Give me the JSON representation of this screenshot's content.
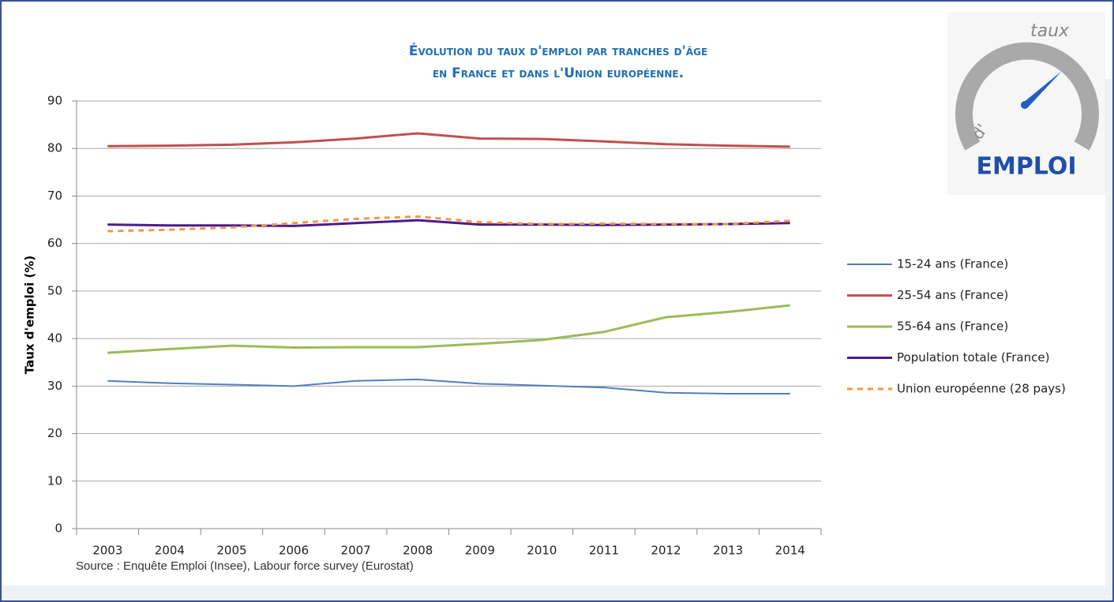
{
  "chart_data": {
    "type": "line",
    "title": [
      "Évolution du taux d'emploi par tranches d'âge",
      "en France et dans l'Union européenne."
    ],
    "y_label": "Taux d'emploi (%)",
    "source": "Source : Enquête Emploi (Insee), Labour force survey (Eurostat)",
    "logo": [
      "taux",
      "d'",
      "EMPLOI"
    ],
    "categories": [
      "2003",
      "2004",
      "2005",
      "2006",
      "2007",
      "2008",
      "2009",
      "2010",
      "2011",
      "2012",
      "2013",
      "2014"
    ],
    "series": [
      {
        "name": "15-24 ans (France)",
        "color": "#4f81bd",
        "width": 2,
        "values": [
          31.1,
          30.6,
          30.3,
          30.0,
          31.1,
          31.4,
          30.5,
          30.1,
          29.7,
          28.6,
          28.4,
          28.4
        ]
      },
      {
        "name": "25-54 ans (France)",
        "color": "#c0504d",
        "width": 3,
        "values": [
          80.5,
          80.6,
          80.8,
          81.3,
          82.1,
          83.2,
          82.1,
          82.0,
          81.5,
          80.9,
          80.6,
          80.4
        ]
      },
      {
        "name": "55-64 ans (France)",
        "color": "#9bbb59",
        "width": 3,
        "values": [
          37.0,
          37.8,
          38.5,
          38.1,
          38.2,
          38.2,
          38.9,
          39.7,
          41.4,
          44.5,
          45.6,
          47.0
        ]
      },
      {
        "name": "Population totale (France)",
        "color": "#4b1c8c",
        "width": 3,
        "values": [
          64.0,
          63.8,
          63.8,
          63.7,
          64.3,
          64.9,
          64.0,
          64.0,
          63.9,
          64.0,
          64.1,
          64.3
        ]
      },
      {
        "name": "Union européenne (28 pays)",
        "color": "#f79646",
        "width": 3,
        "dashed": true,
        "values": [
          62.6,
          62.9,
          63.4,
          64.3,
          65.2,
          65.7,
          64.5,
          64.1,
          64.2,
          64.1,
          64.1,
          64.8
        ]
      }
    ],
    "ylim": [
      0,
      90
    ],
    "yticks": [
      0,
      10,
      20,
      30,
      40,
      50,
      60,
      70,
      80,
      90
    ],
    "grid": true,
    "legend": "right"
  }
}
